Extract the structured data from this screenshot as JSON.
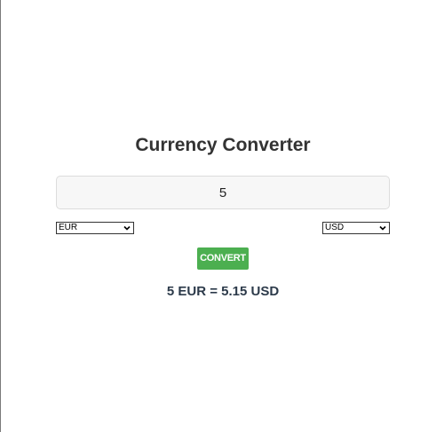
{
  "converter": {
    "title": "Currency Converter",
    "amount_value": "5",
    "from_currency": "EUR",
    "to_currency": "USD",
    "convert_label": "CONVERT",
    "result_text": "5 EUR = 5.15 USD"
  },
  "colors": {
    "button_bg": "#4caf50",
    "button_text": "#ffffff",
    "title_text": "#333333",
    "result_text": "#2c3a4a",
    "input_bg": "#f7f7f7"
  },
  "icons": {
    "select_arrow": "chevron-down-icon"
  }
}
